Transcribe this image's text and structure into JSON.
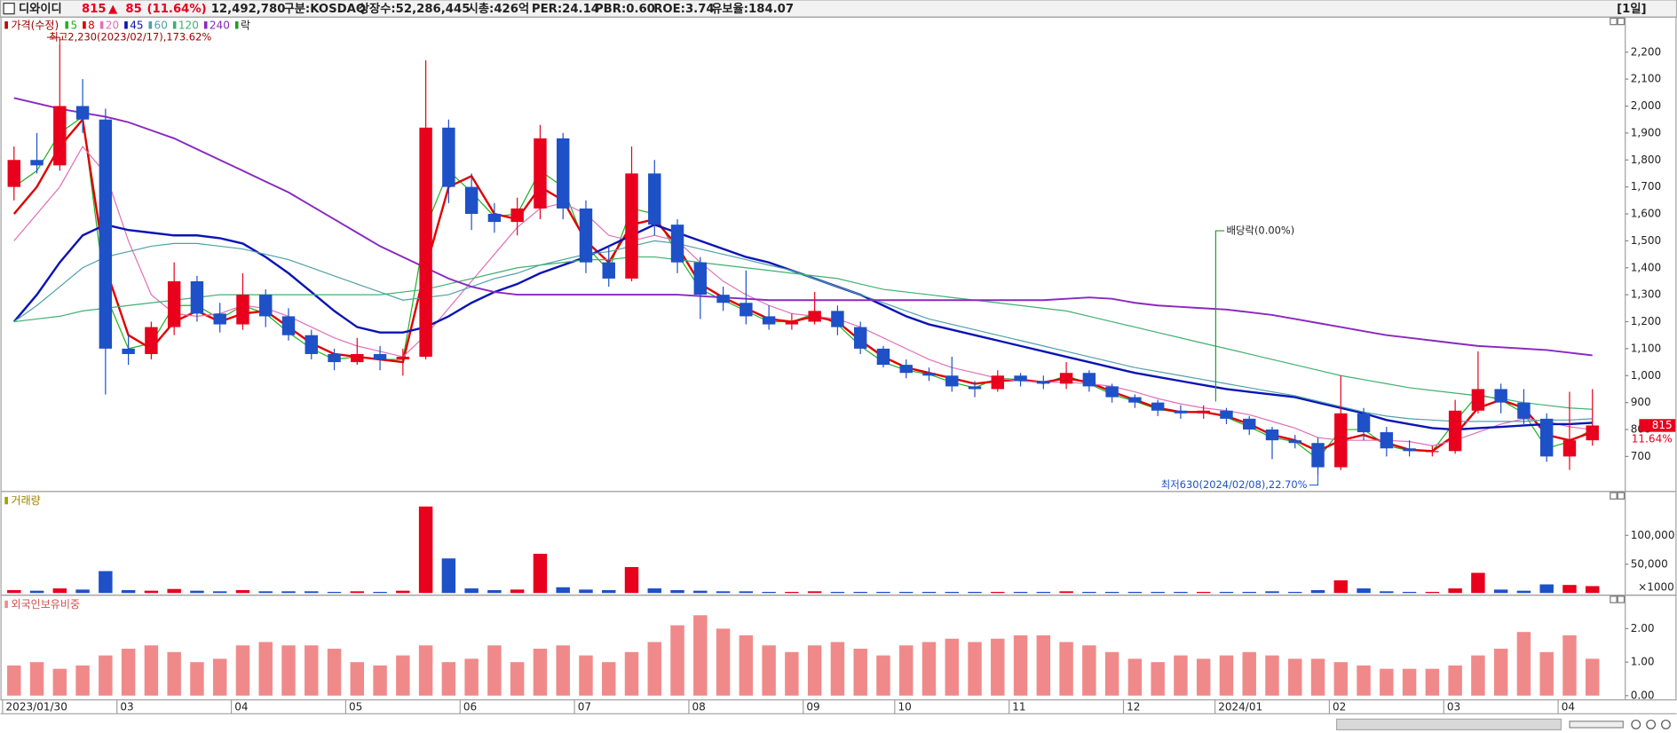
{
  "header": {
    "name": "디와이디",
    "price": "815",
    "arrow": "▲",
    "change": "85",
    "change_pct": "(11.64%)",
    "volume": "12,492,780",
    "market": "구분:KOSDAQ",
    "listed_shares": "상장수:52,286,445",
    "market_cap": "시총:426억",
    "per": "PER:24.14",
    "pbr": "PBR:0.60",
    "roe": "ROE:3.74",
    "reserve_ratio": "유보율:184.07",
    "period": "[1일]"
  },
  "chart_data": [
    {
      "type": "candlestick",
      "title": "가격(수정)",
      "extra_legend": "락",
      "up_color": "#e8001c",
      "down_color": "#1e50c8",
      "open": [
        1700,
        1800,
        1780,
        2000,
        1950,
        1100,
        1080,
        1180,
        1350,
        1230,
        1190,
        1300,
        1220,
        1150,
        1080,
        1050,
        1080,
        1060,
        1070,
        1920,
        1700,
        1600,
        1570,
        1620,
        1880,
        1620,
        1420,
        1360,
        1750,
        1560,
        1420,
        1300,
        1270,
        1220,
        1190,
        1200,
        1240,
        1180,
        1100,
        1040,
        1010,
        1000,
        960,
        950,
        1000,
        980,
        970,
        1010,
        960,
        920,
        900,
        870,
        860,
        870,
        840,
        800,
        760,
        750,
        660,
        860,
        790,
        730,
        720,
        720,
        870,
        950,
        900,
        840,
        700,
        760
      ],
      "high": [
        1850,
        1900,
        2230,
        2100,
        1990,
        1150,
        1200,
        1420,
        1370,
        1270,
        1380,
        1320,
        1250,
        1170,
        1100,
        1140,
        1110,
        1100,
        2170,
        1950,
        1750,
        1640,
        1660,
        1930,
        1900,
        1650,
        1480,
        1850,
        1800,
        1580,
        1440,
        1330,
        1390,
        1260,
        1230,
        1310,
        1260,
        1200,
        1110,
        1060,
        1030,
        1070,
        980,
        1020,
        1010,
        1000,
        1050,
        1020,
        970,
        930,
        910,
        890,
        890,
        880,
        850,
        810,
        780,
        770,
        1000,
        880,
        810,
        760,
        740,
        910,
        1090,
        970,
        950,
        860,
        940,
        950
      ],
      "low": [
        1650,
        1750,
        1760,
        1900,
        930,
        1040,
        1060,
        1150,
        1200,
        1160,
        1170,
        1180,
        1130,
        1060,
        1020,
        1040,
        1020,
        1000,
        1060,
        1640,
        1540,
        1530,
        1520,
        1580,
        1580,
        1380,
        1330,
        1350,
        1520,
        1380,
        1210,
        1240,
        1190,
        1170,
        1170,
        1190,
        1150,
        1080,
        1030,
        990,
        980,
        940,
        920,
        940,
        960,
        950,
        950,
        940,
        900,
        880,
        850,
        840,
        840,
        820,
        780,
        690,
        730,
        630,
        650,
        760,
        700,
        700,
        700,
        710,
        860,
        860,
        820,
        680,
        650,
        740
      ],
      "close": [
        1800,
        1780,
        2000,
        1950,
        1100,
        1080,
        1180,
        1350,
        1230,
        1190,
        1300,
        1220,
        1150,
        1080,
        1050,
        1080,
        1060,
        1070,
        1920,
        1700,
        1600,
        1570,
        1620,
        1880,
        1620,
        1420,
        1360,
        1750,
        1560,
        1420,
        1300,
        1270,
        1220,
        1190,
        1200,
        1240,
        1180,
        1100,
        1040,
        1010,
        1000,
        960,
        950,
        1000,
        980,
        970,
        1010,
        960,
        920,
        900,
        870,
        860,
        870,
        840,
        800,
        760,
        750,
        660,
        860,
        790,
        730,
        720,
        720,
        870,
        950,
        900,
        840,
        700,
        760,
        815
      ],
      "series": [
        {
          "name": "5",
          "color": "#20b020",
          "width": 1,
          "values": [
            1700,
            1760,
            1900,
            1960,
            1300,
            1100,
            1120,
            1260,
            1260,
            1210,
            1260,
            1230,
            1160,
            1100,
            1060,
            1070,
            1060,
            1060,
            1550,
            1760,
            1680,
            1590,
            1600,
            1760,
            1700,
            1480,
            1390,
            1620,
            1600,
            1450,
            1320,
            1280,
            1240,
            1200,
            1200,
            1230,
            1190,
            1110,
            1050,
            1020,
            1005,
            975,
            955,
            990,
            985,
            970,
            1000,
            970,
            930,
            905,
            875,
            862,
            868,
            845,
            810,
            770,
            755,
            690,
            800,
            800,
            740,
            722,
            720,
            830,
            930,
            910,
            860,
            730,
            755,
            800
          ]
        },
        {
          "name": "8",
          "color": "#e00000",
          "width": 2,
          "values": [
            1600,
            1700,
            1850,
            1950,
            1400,
            1150,
            1100,
            1200,
            1240,
            1200,
            1230,
            1240,
            1180,
            1120,
            1080,
            1070,
            1060,
            1050,
            1400,
            1700,
            1740,
            1600,
            1580,
            1700,
            1650,
            1500,
            1420,
            1560,
            1580,
            1480,
            1340,
            1290,
            1250,
            1210,
            1200,
            1220,
            1200,
            1130,
            1070,
            1030,
            1010,
            990,
            970,
            980,
            985,
            975,
            990,
            975,
            940,
            910,
            880,
            865,
            865,
            850,
            820,
            780,
            760,
            720,
            760,
            780,
            750,
            725,
            720,
            780,
            880,
            910,
            880,
            780,
            760,
            790
          ]
        },
        {
          "name": "20",
          "color": "#e070b8",
          "width": 1,
          "values": [
            1500,
            1600,
            1700,
            1850,
            1750,
            1500,
            1300,
            1230,
            1220,
            1230,
            1260,
            1250,
            1220,
            1180,
            1140,
            1110,
            1090,
            1070,
            1150,
            1250,
            1350,
            1450,
            1550,
            1620,
            1640,
            1600,
            1520,
            1500,
            1520,
            1500,
            1420,
            1350,
            1300,
            1260,
            1230,
            1220,
            1210,
            1180,
            1140,
            1100,
            1060,
            1030,
            1010,
            990,
            980,
            975,
            975,
            970,
            960,
            940,
            915,
            895,
            880,
            870,
            855,
            830,
            805,
            770,
            760,
            760,
            760,
            755,
            740,
            760,
            790,
            820,
            840,
            830,
            810,
            800
          ]
        },
        {
          "name": "45",
          "color": "#0a14b4",
          "width": 2,
          "values": [
            1200,
            1300,
            1420,
            1520,
            1560,
            1540,
            1530,
            1520,
            1520,
            1510,
            1490,
            1440,
            1380,
            1310,
            1240,
            1180,
            1160,
            1160,
            1180,
            1220,
            1270,
            1310,
            1340,
            1380,
            1410,
            1440,
            1480,
            1520,
            1560,
            1530,
            1500,
            1470,
            1440,
            1420,
            1390,
            1360,
            1330,
            1300,
            1260,
            1220,
            1190,
            1170,
            1150,
            1130,
            1110,
            1090,
            1070,
            1050,
            1030,
            1010,
            995,
            980,
            965,
            950,
            940,
            930,
            920,
            900,
            880,
            860,
            835,
            820,
            805,
            800,
            805,
            810,
            815,
            820,
            820,
            825
          ]
        },
        {
          "name": "60",
          "color": "#50a0a8",
          "width": 1,
          "values": [
            1200,
            1260,
            1330,
            1400,
            1440,
            1460,
            1480,
            1490,
            1490,
            1480,
            1470,
            1450,
            1430,
            1400,
            1370,
            1340,
            1310,
            1280,
            1290,
            1300,
            1330,
            1360,
            1380,
            1410,
            1430,
            1450,
            1460,
            1480,
            1500,
            1490,
            1470,
            1450,
            1430,
            1410,
            1390,
            1360,
            1330,
            1300,
            1270,
            1240,
            1210,
            1190,
            1170,
            1150,
            1130,
            1110,
            1090,
            1070,
            1050,
            1030,
            1015,
            1000,
            985,
            970,
            955,
            940,
            925,
            905,
            885,
            865,
            850,
            840,
            835,
            830,
            830,
            830,
            830,
            835,
            835,
            840
          ]
        },
        {
          "name": "120",
          "color": "#40b070",
          "width": 1,
          "values": [
            1200,
            1210,
            1220,
            1240,
            1250,
            1260,
            1270,
            1280,
            1290,
            1300,
            1300,
            1300,
            1300,
            1300,
            1300,
            1300,
            1300,
            1310,
            1320,
            1340,
            1360,
            1380,
            1400,
            1410,
            1420,
            1430,
            1430,
            1440,
            1440,
            1430,
            1420,
            1410,
            1400,
            1390,
            1380,
            1370,
            1360,
            1340,
            1320,
            1310,
            1300,
            1290,
            1280,
            1270,
            1260,
            1250,
            1240,
            1220,
            1200,
            1180,
            1160,
            1140,
            1120,
            1100,
            1080,
            1060,
            1040,
            1020,
            1000,
            985,
            970,
            955,
            945,
            935,
            925,
            915,
            900,
            890,
            880,
            875
          ]
        },
        {
          "name": "240",
          "color": "#8a28c0",
          "width": 1.6,
          "values": [
            2030,
            2010,
            1990,
            1975,
            1960,
            1940,
            1910,
            1880,
            1840,
            1800,
            1760,
            1720,
            1680,
            1630,
            1580,
            1530,
            1480,
            1440,
            1400,
            1360,
            1330,
            1310,
            1300,
            1300,
            1300,
            1300,
            1300,
            1300,
            1300,
            1300,
            1295,
            1290,
            1285,
            1280,
            1280,
            1280,
            1280,
            1280,
            1280,
            1280,
            1280,
            1280,
            1280,
            1280,
            1280,
            1280,
            1285,
            1290,
            1285,
            1270,
            1260,
            1255,
            1250,
            1245,
            1235,
            1225,
            1210,
            1195,
            1180,
            1165,
            1150,
            1140,
            1130,
            1120,
            1110,
            1105,
            1100,
            1095,
            1085,
            1075
          ]
        }
      ],
      "ylim": [
        570,
        2330
      ],
      "yticks": [
        700,
        800,
        900,
        {
          "value": 1000,
          "label": "1,000"
        },
        {
          "value": 1100,
          "label": "1,100"
        },
        {
          "value": 1200,
          "label": "1,200"
        },
        {
          "value": 1300,
          "label": "1,300"
        },
        {
          "value": 1400,
          "label": "1,400"
        },
        {
          "value": 1500,
          "label": "1,500"
        },
        {
          "value": 1600,
          "label": "1,600"
        },
        {
          "value": 1700,
          "label": "1,700"
        },
        {
          "value": 1800,
          "label": "1,800"
        },
        {
          "value": 1900,
          "label": "1,900"
        },
        {
          "value": 2000,
          "label": "2,000"
        },
        {
          "value": 2100,
          "label": "2,100"
        },
        {
          "value": 2200,
          "label": "2,200"
        }
      ],
      "annotations": {
        "high": "최고2,230(2023/02/17),173.62%",
        "low": "최저630(2024/02/08),22.70%",
        "dividend": "배당락(0.00%)"
      },
      "last_price_label": "815",
      "last_change_label": "11.64%"
    },
    {
      "type": "bar",
      "title": "거래량",
      "unit_label": "×1000",
      "up_color": "#e8001c",
      "down_color": "#1e50c8",
      "values": [
        5000,
        4000,
        8000,
        6000,
        38000,
        5000,
        4000,
        7000,
        4000,
        3000,
        5000,
        3000,
        3000,
        3000,
        2000,
        3000,
        2000,
        4000,
        150000,
        60000,
        8000,
        5000,
        6000,
        68000,
        10000,
        6000,
        5000,
        45000,
        8000,
        5000,
        4000,
        3000,
        3000,
        2000,
        2000,
        3000,
        2000,
        2000,
        2000,
        2000,
        2000,
        2000,
        2000,
        2000,
        2000,
        2000,
        3000,
        2000,
        2000,
        2000,
        2000,
        2000,
        2000,
        2000,
        2000,
        3000,
        2000,
        5000,
        22000,
        8000,
        3000,
        2000,
        2000,
        8000,
        35000,
        6000,
        4000,
        15000,
        14000,
        12000
      ],
      "ylim": [
        0,
        176000
      ],
      "yticks": [
        {
          "value": 50000,
          "label": "50,000"
        },
        {
          "value": 100000,
          "label": "100,000"
        }
      ]
    },
    {
      "type": "bar",
      "title": "외국인보유비중",
      "color": "#f08a8a",
      "values": [
        0.9,
        1.0,
        0.8,
        0.9,
        1.2,
        1.4,
        1.5,
        1.3,
        1.0,
        1.1,
        1.5,
        1.6,
        1.5,
        1.5,
        1.4,
        1.0,
        0.9,
        1.2,
        1.5,
        1.0,
        1.1,
        1.5,
        1.0,
        1.4,
        1.5,
        1.2,
        1.0,
        1.3,
        1.6,
        2.1,
        2.4,
        2.0,
        1.8,
        1.5,
        1.3,
        1.5,
        1.6,
        1.4,
        1.2,
        1.5,
        1.6,
        1.7,
        1.6,
        1.7,
        1.8,
        1.8,
        1.6,
        1.5,
        1.3,
        1.1,
        1.0,
        1.2,
        1.1,
        1.2,
        1.3,
        1.2,
        1.1,
        1.1,
        1.0,
        0.9,
        0.8,
        0.8,
        0.8,
        0.9,
        1.2,
        1.4,
        1.9,
        1.3,
        1.8,
        1.1
      ],
      "ylim": [
        0,
        3.0
      ],
      "yticks": [
        {
          "value": 0,
          "label": "0.00"
        },
        {
          "value": 1,
          "label": "1.00"
        },
        {
          "value": 2,
          "label": "2.00"
        }
      ],
      "categories": [
        "2023/01/30",
        null,
        null,
        null,
        null,
        "03",
        null,
        null,
        null,
        null,
        "04",
        null,
        null,
        null,
        null,
        "05",
        null,
        null,
        null,
        null,
        "06",
        null,
        null,
        null,
        null,
        "07",
        null,
        null,
        null,
        null,
        "08",
        null,
        null,
        null,
        null,
        "09",
        null,
        null,
        null,
        "10",
        null,
        null,
        null,
        null,
        "11",
        null,
        null,
        null,
        null,
        "12",
        null,
        null,
        null,
        "2024/01",
        null,
        null,
        null,
        null,
        "02",
        null,
        null,
        null,
        null,
        "03",
        null,
        null,
        null,
        null,
        "04",
        null
      ]
    }
  ]
}
